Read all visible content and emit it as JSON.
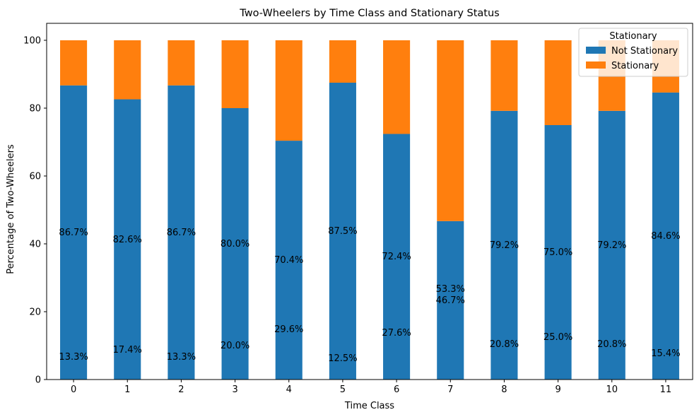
{
  "chart_data": {
    "type": "bar",
    "stacked": true,
    "title": "Two-Wheelers by Time Class and Stationary Status",
    "xlabel": "Time Class",
    "ylabel": "Percentage of Two-Wheelers",
    "categories": [
      "0",
      "1",
      "2",
      "3",
      "4",
      "5",
      "6",
      "7",
      "8",
      "9",
      "10",
      "11"
    ],
    "ylim": [
      0,
      105
    ],
    "yticks": [
      0,
      20,
      40,
      60,
      80,
      100
    ],
    "grid": false,
    "series": [
      {
        "name": "Not Stationary",
        "color": "#1f77b4",
        "values": [
          86.7,
          82.6,
          86.7,
          80.0,
          70.4,
          87.5,
          72.4,
          46.7,
          79.2,
          75.0,
          79.2,
          84.6
        ],
        "labels": [
          "86.7%",
          "82.6%",
          "86.7%",
          "80.0%",
          "70.4%",
          "87.5%",
          "72.4%",
          "46.7%",
          "79.2%",
          "75.0%",
          "79.2%",
          "84.6%"
        ]
      },
      {
        "name": "Stationary",
        "color": "#ff7f0e",
        "values": [
          13.3,
          17.4,
          13.3,
          20.0,
          29.6,
          12.5,
          27.6,
          53.3,
          20.8,
          25.0,
          20.8,
          15.4
        ],
        "labels": [
          "13.3%",
          "17.4%",
          "13.3%",
          "20.0%",
          "29.6%",
          "12.5%",
          "27.6%",
          "53.3%",
          "20.8%",
          "25.0%",
          "20.8%",
          "15.4%"
        ]
      }
    ],
    "legend": {
      "title": "Stationary",
      "placement": "top-right"
    }
  }
}
